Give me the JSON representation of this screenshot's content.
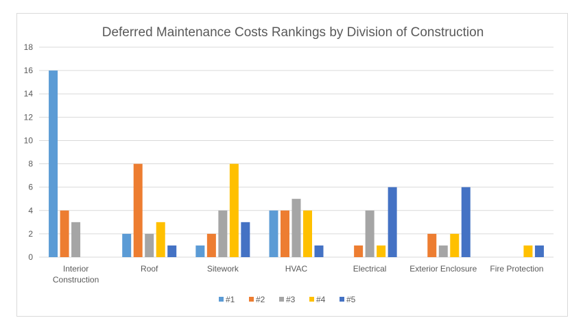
{
  "chart_data": {
    "type": "bar",
    "title": "Deferred Maintenance Costs Rankings by Division of Construction",
    "xlabel": "",
    "ylabel": "",
    "ylim": [
      0,
      18
    ],
    "yticks": [
      0,
      2,
      4,
      6,
      8,
      10,
      12,
      14,
      16,
      18
    ],
    "grid": true,
    "legend_position": "bottom",
    "categories": [
      [
        "Interior",
        "Construction"
      ],
      [
        "Roof"
      ],
      [
        "Sitework"
      ],
      [
        "HVAC"
      ],
      [
        "Electrical"
      ],
      [
        "Exterior Enclosure"
      ],
      [
        "Fire Protection"
      ]
    ],
    "series": [
      {
        "name": "#1",
        "color": "#5b9bd5",
        "values": [
          16,
          2,
          1,
          4,
          0,
          0,
          0
        ]
      },
      {
        "name": "#2",
        "color": "#ed7d31",
        "values": [
          4,
          8,
          2,
          4,
          1,
          2,
          0
        ]
      },
      {
        "name": "#3",
        "color": "#a5a5a5",
        "values": [
          3,
          2,
          4,
          5,
          4,
          1,
          0
        ]
      },
      {
        "name": "#4",
        "color": "#ffc000",
        "values": [
          0,
          3,
          8,
          4,
          1,
          2,
          1
        ]
      },
      {
        "name": "#5",
        "color": "#4472c4",
        "values": [
          0,
          1,
          3,
          1,
          6,
          6,
          1
        ]
      }
    ]
  }
}
